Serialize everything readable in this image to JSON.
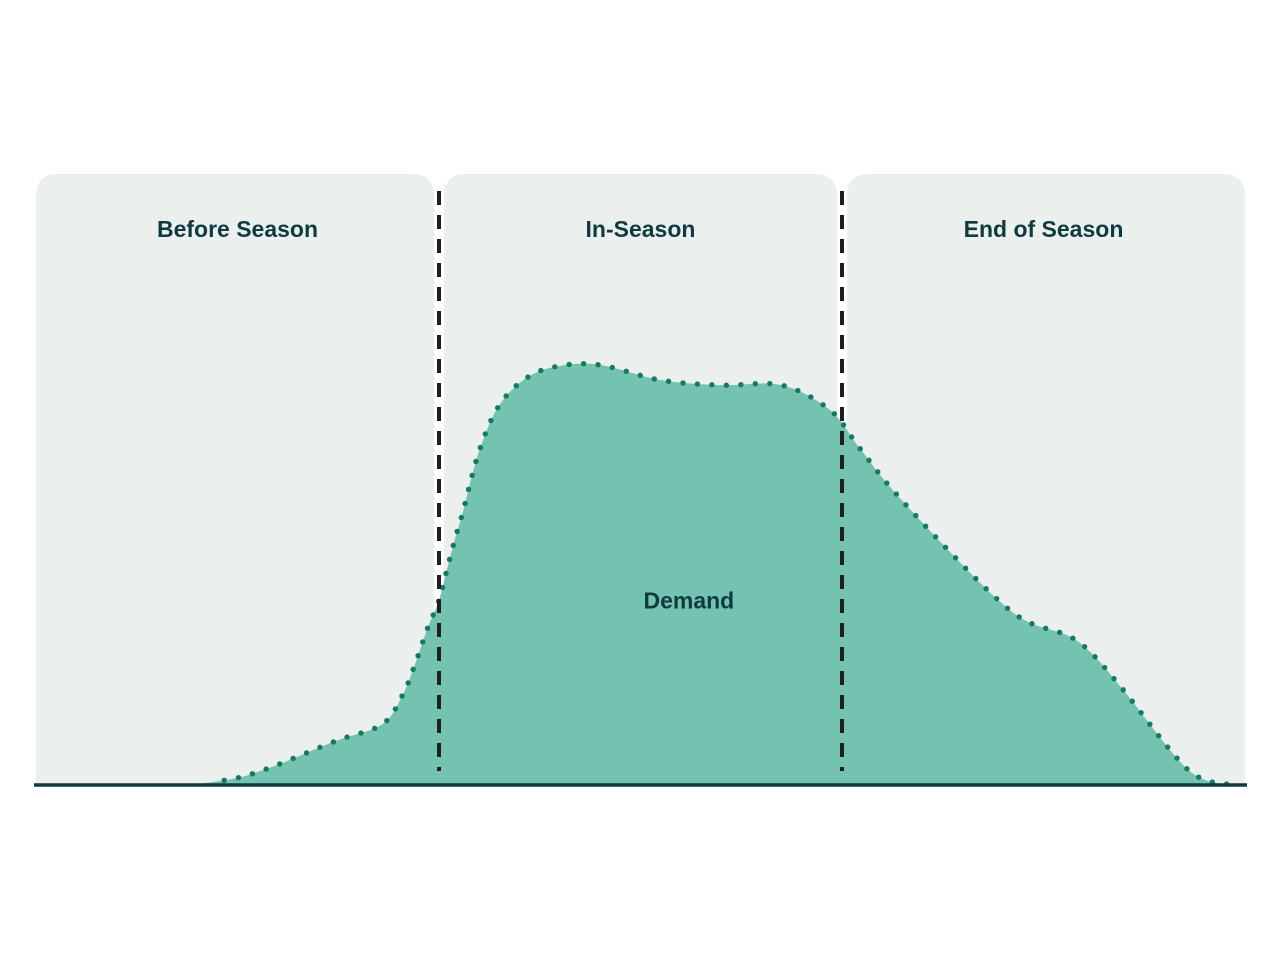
{
  "chart_data": {
    "type": "area",
    "phases": [
      {
        "label": "Before Season",
        "start": 0,
        "end": 100
      },
      {
        "label": "In-Season",
        "start": 100,
        "end": 200
      },
      {
        "label": "End of Season",
        "start": 200,
        "end": 300
      }
    ],
    "dividers": [
      100,
      200
    ],
    "series": [
      {
        "name": "Demand",
        "color": "#74c2b0",
        "line_color": "#157a5f",
        "line_style": "dotted",
        "x": [
          0,
          33,
          40,
          50,
          58,
          65,
          75,
          86,
          91,
          94,
          97,
          100,
          102,
          104,
          106,
          110,
          115,
          122,
          130,
          140,
          155,
          170,
          185,
          197,
          204,
          212,
          225,
          238,
          246,
          256,
          262,
          270,
          286,
          296
        ],
        "y": [
          0,
          0,
          0.3,
          1.7,
          4.1,
          6.8,
          10.7,
          14.5,
          21.5,
          28.6,
          36.9,
          44.0,
          51.4,
          58.7,
          65.3,
          79.6,
          90.5,
          97.1,
          99.8,
          100.0,
          96.4,
          95.2,
          95.2,
          89.3,
          80.7,
          70.9,
          57.3,
          44.7,
          38.9,
          35.6,
          31.3,
          22.4,
          3.5,
          0
        ]
      }
    ],
    "xlim": [
      0,
      300
    ],
    "ylim": [
      0,
      200
    ],
    "grid": false,
    "legend": "none",
    "colors": {
      "panel": "#ebf0ee",
      "area": "#74c2b0",
      "dots": "#157a5f",
      "divider": "#1f1f1f",
      "baseline": "#0d3b3e",
      "label": "#0f3a40"
    }
  }
}
